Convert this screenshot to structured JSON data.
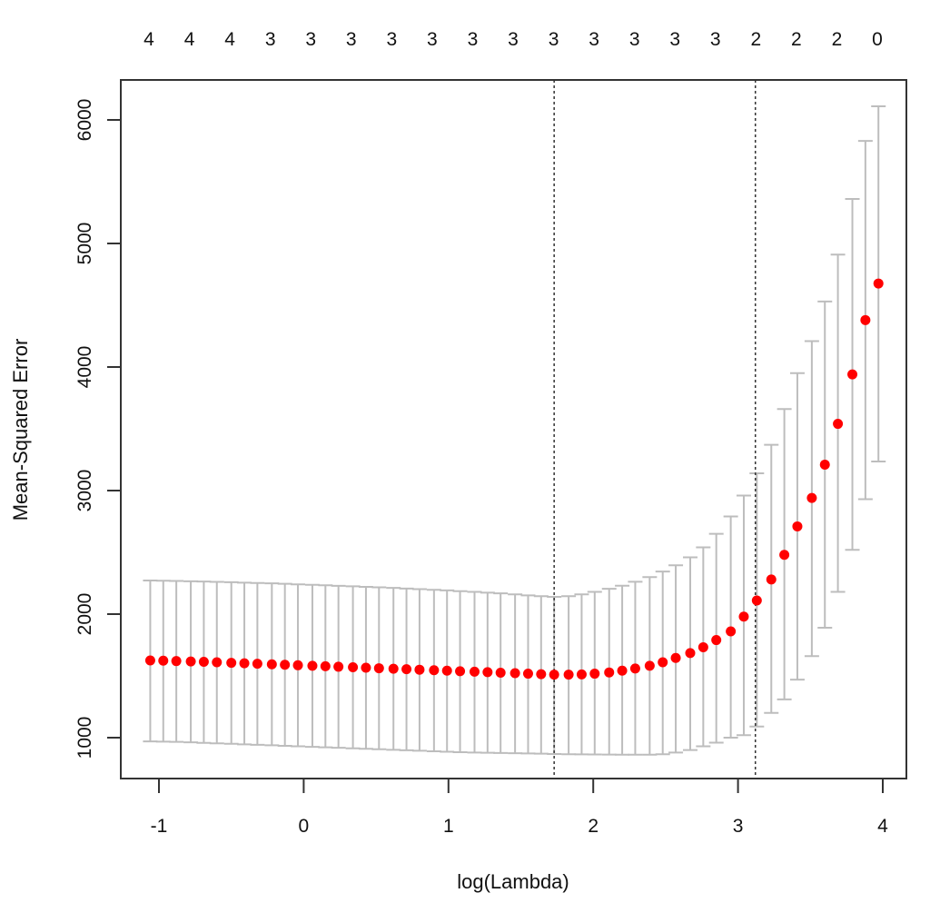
{
  "chart_data": {
    "type": "scatter",
    "subtype": "cv-error-plot-with-error-bars",
    "title": "",
    "xlabel": "log(Lambda)",
    "ylabel": "Mean-Squared Error",
    "xlim": [
      -1.2,
      4.2
    ],
    "ylim": [
      650,
      6250
    ],
    "x_ticks": [
      -1,
      0,
      1,
      2,
      3,
      4
    ],
    "y_ticks": [
      1000,
      2000,
      3000,
      4000,
      5000,
      6000
    ],
    "grid": false,
    "legend": null,
    "top_axis_labels": [
      "4",
      "4",
      "4",
      "3",
      "3",
      "3",
      "3",
      "3",
      "3",
      "3",
      "3",
      "3",
      "3",
      "3",
      "3",
      "2",
      "2",
      "2",
      "0"
    ],
    "vlines": [
      {
        "name": "lambda.min",
        "x": 1.73,
        "style": "dotted"
      },
      {
        "name": "lambda.1se",
        "x": 3.12,
        "style": "dotted"
      }
    ],
    "colors": {
      "points": "#ff0000",
      "error_bars": "#bdbdbd",
      "axis": "#000000",
      "vline": "#333333"
    },
    "x": [
      -1.06,
      -0.97,
      -0.88,
      -0.78,
      -0.69,
      -0.6,
      -0.5,
      -0.41,
      -0.32,
      -0.22,
      -0.13,
      -0.04,
      0.06,
      0.15,
      0.24,
      0.34,
      0.43,
      0.52,
      0.62,
      0.71,
      0.8,
      0.9,
      0.99,
      1.08,
      1.18,
      1.27,
      1.36,
      1.46,
      1.55,
      1.64,
      1.73,
      1.83,
      1.92,
      2.01,
      2.11,
      2.2,
      2.29,
      2.39,
      2.48,
      2.57,
      2.67,
      2.76,
      2.85,
      2.95,
      3.04,
      3.13,
      3.23,
      3.32,
      3.41,
      3.51,
      3.6,
      3.69,
      3.79,
      3.88,
      3.97
    ],
    "series": [
      {
        "name": "MSE",
        "values": [
          1625,
          1623,
          1620,
          1617,
          1614,
          1610,
          1606,
          1602,
          1598,
          1594,
          1590,
          1586,
          1582,
          1578,
          1574,
          1570,
          1566,
          1562,
          1558,
          1554,
          1550,
          1546,
          1542,
          1538,
          1534,
          1530,
          1526,
          1522,
          1518,
          1514,
          1510,
          1510,
          1512,
          1518,
          1528,
          1542,
          1560,
          1582,
          1610,
          1645,
          1685,
          1732,
          1790,
          1860,
          1980,
          2110,
          2280,
          2480,
          2710,
          2940,
          3210,
          3540,
          3940,
          4380,
          4676
        ]
      },
      {
        "name": "upper",
        "values": [
          2272,
          2270,
          2268,
          2266,
          2264,
          2261,
          2258,
          2255,
          2252,
          2249,
          2245,
          2241,
          2237,
          2233,
          2229,
          2225,
          2221,
          2217,
          2212,
          2207,
          2202,
          2197,
          2192,
          2186,
          2180,
          2174,
          2168,
          2160,
          2152,
          2145,
          2140,
          2145,
          2160,
          2180,
          2205,
          2230,
          2262,
          2300,
          2345,
          2395,
          2460,
          2540,
          2650,
          2790,
          2960,
          3140,
          3370,
          3660,
          3950,
          4210,
          4530,
          4910,
          5360,
          5830,
          6110
        ]
      },
      {
        "name": "lower",
        "values": [
          970,
          968,
          966,
          962,
          958,
          954,
          950,
          946,
          942,
          938,
          934,
          930,
          926,
          922,
          918,
          914,
          910,
          906,
          902,
          898,
          894,
          890,
          886,
          882,
          880,
          878,
          876,
          874,
          872,
          870,
          868,
          866,
          865,
          864,
          863,
          862,
          862,
          862,
          866,
          880,
          900,
          930,
          960,
          1000,
          1020,
          1090,
          1200,
          1310,
          1470,
          1660,
          1890,
          2180,
          2520,
          2930,
          3235
        ]
      }
    ]
  }
}
